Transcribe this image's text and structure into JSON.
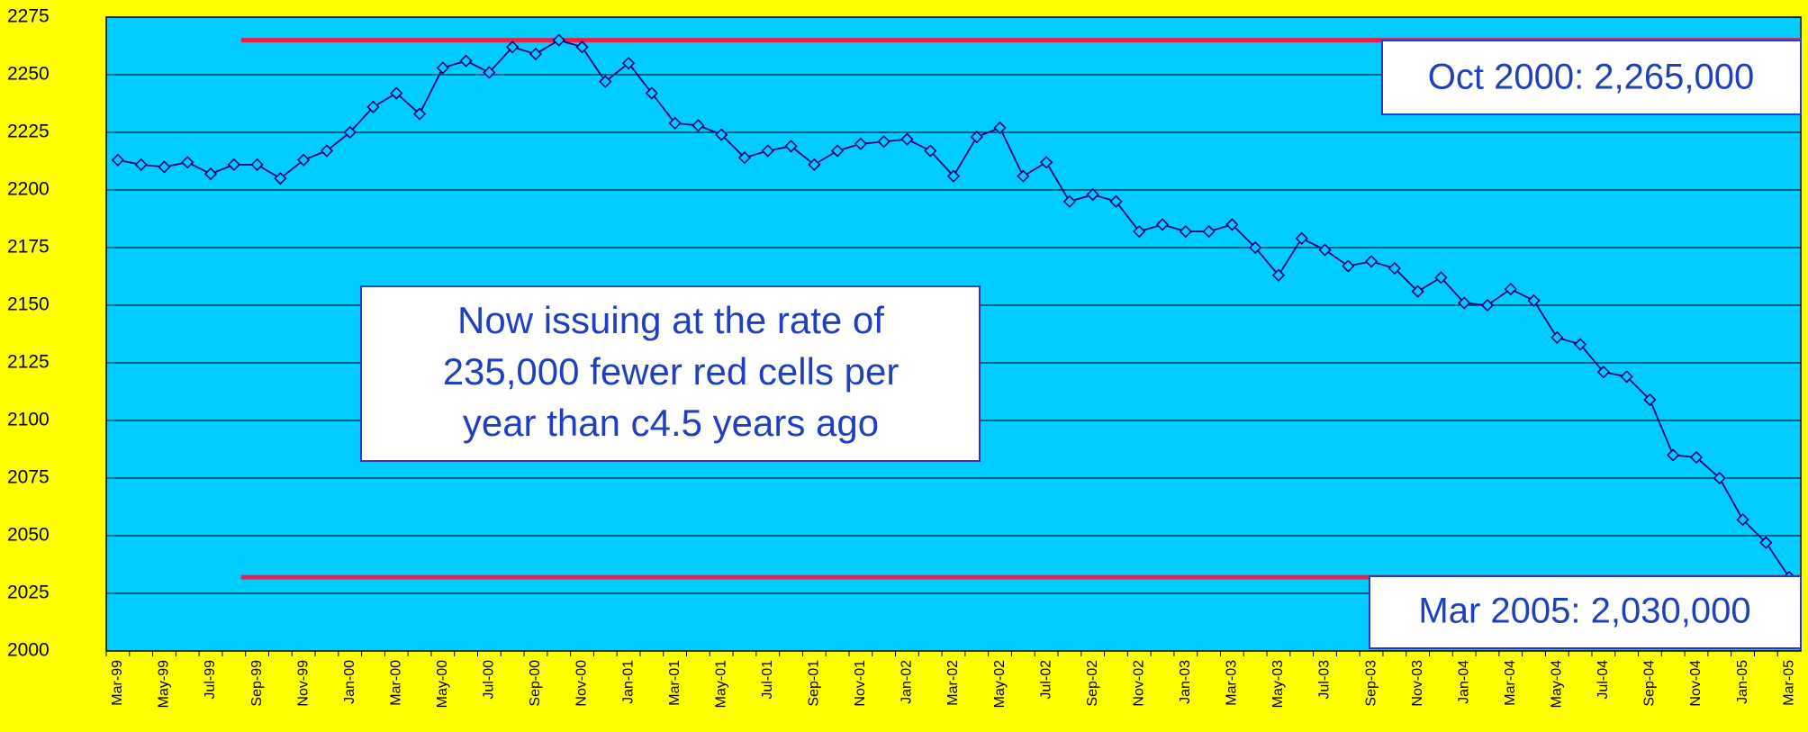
{
  "chart_data": {
    "type": "line",
    "categories": [
      "Mar-99",
      null,
      "May-99",
      null,
      "Jul-99",
      null,
      "Sep-99",
      null,
      "Nov-99",
      null,
      "Jan-00",
      null,
      "Mar-00",
      null,
      "May-00",
      null,
      "Jul-00",
      null,
      "Sep-00",
      null,
      "Nov-00",
      null,
      "Jan-01",
      null,
      "Mar-01",
      null,
      "May-01",
      null,
      "Jul-01",
      null,
      "Sep-01",
      null,
      "Nov-01",
      null,
      "Jan-02",
      null,
      "Mar-02",
      null,
      "May-02",
      null,
      "Jul-02",
      null,
      "Sep-02",
      null,
      "Nov-02",
      null,
      "Jan-03",
      null,
      "Mar-03",
      null,
      "May-03",
      null,
      "Jul-03",
      null,
      "Sep-03",
      null,
      "Nov-03",
      null,
      "Jan-04",
      null,
      "Mar-04",
      null,
      "May-04",
      null,
      "Jul-04",
      null,
      "Sep-04",
      null,
      "Nov-04",
      null,
      "Jan-05",
      null,
      "Mar-05"
    ],
    "values": [
      2213,
      2211,
      2210,
      2212,
      2207,
      2211,
      2211,
      2205,
      2213,
      2217,
      2225,
      2236,
      2242,
      2233,
      2253,
      2256,
      2251,
      2262,
      2259,
      2265,
      2262,
      2247,
      2255,
      2242,
      2229,
      2228,
      2224,
      2214,
      2217,
      2219,
      2211,
      2217,
      2220,
      2221,
      2222,
      2217,
      2206,
      2223,
      2227,
      2206,
      2212,
      2195,
      2198,
      2195,
      2182,
      2185,
      2182,
      2182,
      2185,
      2175,
      2163,
      2179,
      2174,
      2167,
      2169,
      2166,
      2156,
      2162,
      2151,
      2150,
      2157,
      2152,
      2136,
      2133,
      2121,
      2119,
      2109,
      2085,
      2084,
      2075,
      2057,
      2047,
      2032
    ],
    "color": "#000080",
    "ylim": [
      2000,
      2275
    ],
    "yticks": [
      2000,
      2025,
      2050,
      2075,
      2100,
      2125,
      2150,
      2175,
      2200,
      2225,
      2250,
      2275
    ],
    "grid": true,
    "reference_lines": [
      {
        "value": 2265,
        "color": "#e8204a"
      },
      {
        "value": 2032,
        "color": "#e8204a"
      }
    ],
    "annotations": {
      "peak": "Oct 2000: 2,265,000",
      "latest": "Mar 2005: 2,030,000",
      "note": [
        "Now issuing at the rate of",
        "235,000 fewer red cells per",
        "year than c4.5 years ago"
      ]
    }
  }
}
